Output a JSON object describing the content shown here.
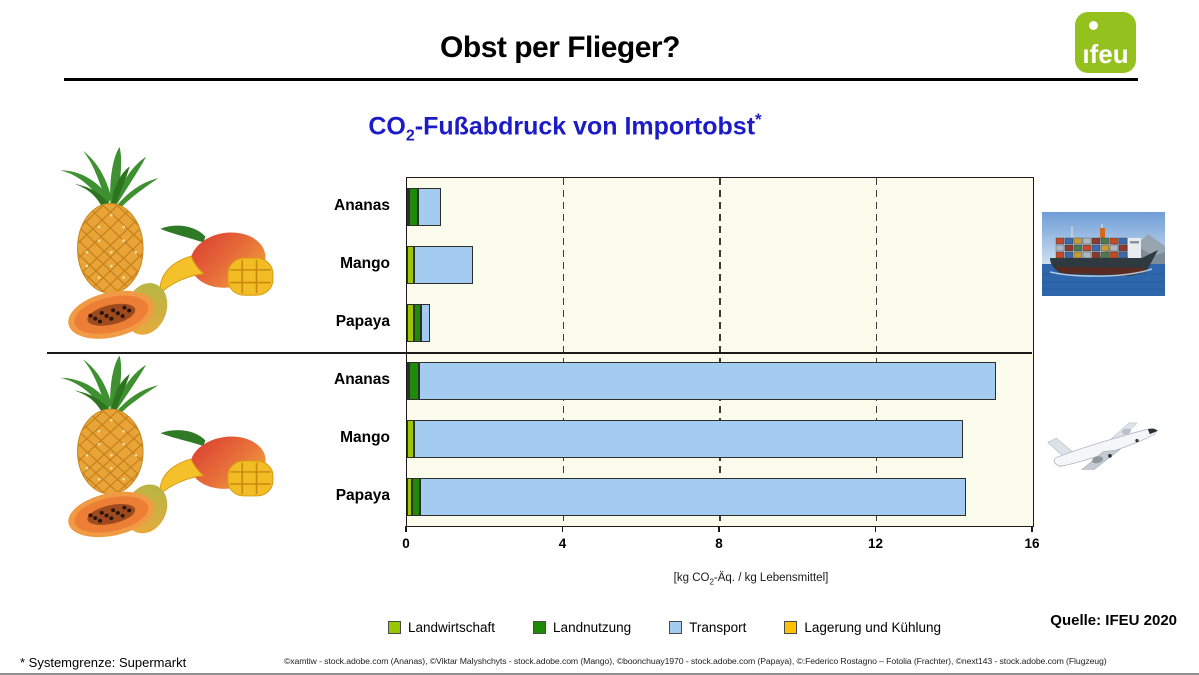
{
  "header": {
    "title": "Obst per Flieger?",
    "logo_text": "ifeu"
  },
  "chart": {
    "title_prefix": "CO",
    "title_sub": "2",
    "title_rest": "-Fußabdruck von Importobst",
    "title_star": "*",
    "xlabel_prefix": "[kg CO",
    "xlabel_sub": "2",
    "xlabel_rest": "-Äq. / kg Lebensmittel]"
  },
  "chart_data": {
    "type": "bar",
    "orientation": "horizontal",
    "stacked": true,
    "title": "CO2-Fußabdruck von Importobst*",
    "xlabel": "[kg CO2-Äq. / kg Lebensmittel]",
    "xlim": [
      0,
      16
    ],
    "xticks": [
      0,
      4,
      8,
      12,
      16
    ],
    "gridlines_at": [
      4,
      8,
      12
    ],
    "grid": "dashed-vertical",
    "legend_position": "bottom",
    "series_order": [
      "Landwirtschaft",
      "Landnutzung",
      "Transport",
      "Lagerung und Kühlung"
    ],
    "legend": [
      {
        "label": "Landwirtschaft",
        "color": "#9AC800"
      },
      {
        "label": "Landnutzung",
        "color": "#1D8A08"
      },
      {
        "label": "Transport",
        "color": "#A4CBF0"
      },
      {
        "label": "Lagerung und Kühlung",
        "color": "#FFC000"
      }
    ],
    "groups": [
      {
        "illustration": "container-ship-photo",
        "rows": [
          {
            "category": "Ananas",
            "values": {
              "Landwirtschaft": 0.05,
              "Landnutzung": 0.22,
              "Transport": 0.6,
              "Lagerung und Kühlung": 0
            },
            "total": 0.87
          },
          {
            "category": "Mango",
            "values": {
              "Landwirtschaft": 0.18,
              "Landnutzung": 0,
              "Transport": 1.5,
              "Lagerung und Kühlung": 0
            },
            "total": 1.68
          },
          {
            "category": "Papaya",
            "values": {
              "Landwirtschaft": 0.18,
              "Landnutzung": 0.18,
              "Transport": 0.23,
              "Lagerung und Kühlung": 0
            },
            "total": 0.59
          }
        ]
      },
      {
        "illustration": "airplane-photo",
        "rows": [
          {
            "category": "Ananas",
            "values": {
              "Landwirtschaft": 0.05,
              "Landnutzung": 0.25,
              "Transport": 14.75,
              "Lagerung und Kühlung": 0
            },
            "total": 15.05
          },
          {
            "category": "Mango",
            "values": {
              "Landwirtschaft": 0.17,
              "Landnutzung": 0,
              "Transport": 14.05,
              "Lagerung und Kühlung": 0
            },
            "total": 14.22
          },
          {
            "category": "Papaya",
            "values": {
              "Landwirtschaft": 0.14,
              "Landnutzung": 0.19,
              "Transport": 13.95,
              "Lagerung und Kühlung": 0
            },
            "total": 14.28
          }
        ]
      }
    ]
  },
  "footer": {
    "source": "Quelle: IFEU 2020",
    "footnote": "* Systemgrenze: Supermarkt",
    "credits": "©xamtiw - stock.adobe.com (Ananas), ©Viktar Malyshchyts - stock.adobe.com (Mango), ©boonchuay1970 - stock.adobe.com (Papaya), ©:Federico Rostagno – Fotolia (Frachter), ©next143 - stock.adobe.com (Flugzeug)"
  }
}
